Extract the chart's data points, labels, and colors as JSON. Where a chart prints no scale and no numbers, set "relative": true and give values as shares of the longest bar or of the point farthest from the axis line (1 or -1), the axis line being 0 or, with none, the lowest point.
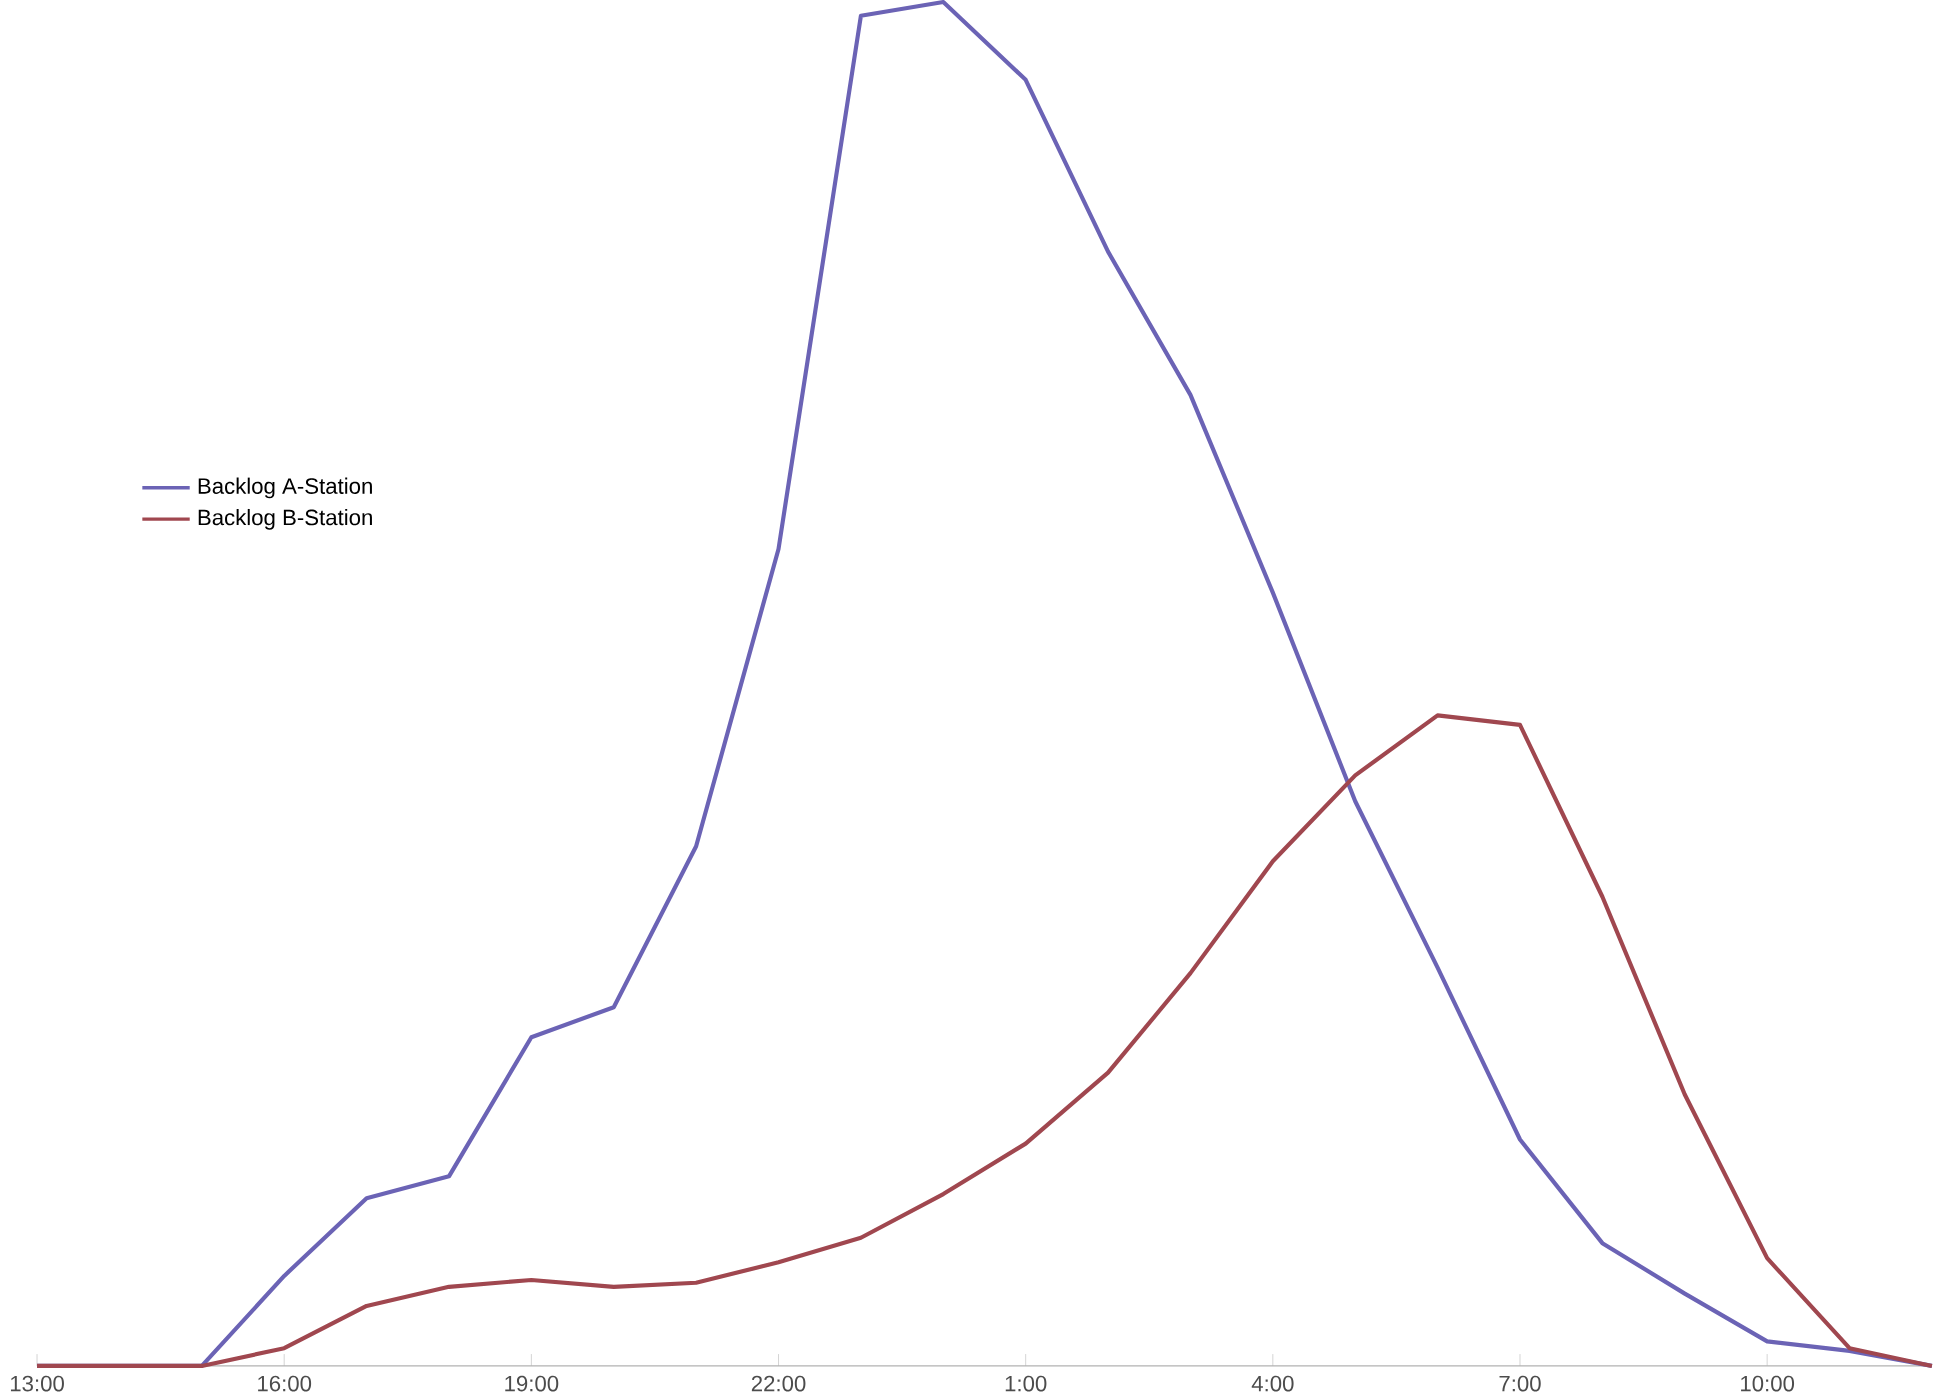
{
  "chart_data": {
    "type": "line",
    "relative": true,
    "x": [
      "2000-01-01T13:00",
      "2000-01-01T14:00",
      "2000-01-01T15:00",
      "2000-01-01T16:00",
      "2000-01-01T17:00",
      "2000-01-01T18:00",
      "2000-01-01T19:00",
      "2000-01-01T20:00",
      "2000-01-01T21:00",
      "2000-01-01T22:00",
      "2000-01-01T23:00",
      "2000-01-02T00:00",
      "2000-01-02T01:00",
      "2000-01-02T02:00",
      "2000-01-02T03:00",
      "2000-01-02T04:00",
      "2000-01-02T05:00",
      "2000-01-02T06:00",
      "2000-01-02T07:00",
      "2000-01-02T08:00",
      "2000-01-02T09:00",
      "2000-01-02T10:00",
      "2000-01-02T11:00",
      "2000-01-02T12:00"
    ],
    "xlim": [
      "2000-01-01T13:00",
      "2000-01-02T12:00"
    ],
    "xticks": [
      {
        "value": "2000-01-01T13:00",
        "label": "13:00"
      },
      {
        "value": "2000-01-01T16:00",
        "label": "16:00"
      },
      {
        "value": "2000-01-01T19:00",
        "label": "19:00"
      },
      {
        "value": "2000-01-01T22:00",
        "label": "22:00"
      },
      {
        "value": "2000-01-02T01:00",
        "label": "1:00"
      },
      {
        "value": "2000-01-02T04:00",
        "label": "4:00"
      },
      {
        "value": "2000-01-02T07:00",
        "label": "7:00"
      },
      {
        "value": "2000-01-02T10:00",
        "label": "10:00"
      }
    ],
    "legend": "left",
    "marker": "none",
    "line_style": "solid",
    "series": [
      {
        "name": "Backlog A-Station",
        "color": "#6b63b5",
        "values": [
          0,
          0,
          0,
          0.066,
          0.123,
          0.139,
          0.241,
          0.263,
          0.381,
          0.599,
          0.99,
          1,
          0.943,
          0.817,
          0.712,
          0.567,
          0.414,
          0.292,
          0.166,
          0.09,
          0.053,
          0.018,
          0.011,
          0
        ]
      },
      {
        "name": "Backlog B-Station",
        "color": "#a0474f",
        "values": [
          0,
          0,
          0,
          0.013,
          0.044,
          0.058,
          0.063,
          0.058,
          0.061,
          0.076,
          0.094,
          0.126,
          0.163,
          0.215,
          0.288,
          0.37,
          0.433,
          0.477,
          0.47,
          0.344,
          0.199,
          0.079,
          0.013,
          0
        ]
      }
    ]
  }
}
